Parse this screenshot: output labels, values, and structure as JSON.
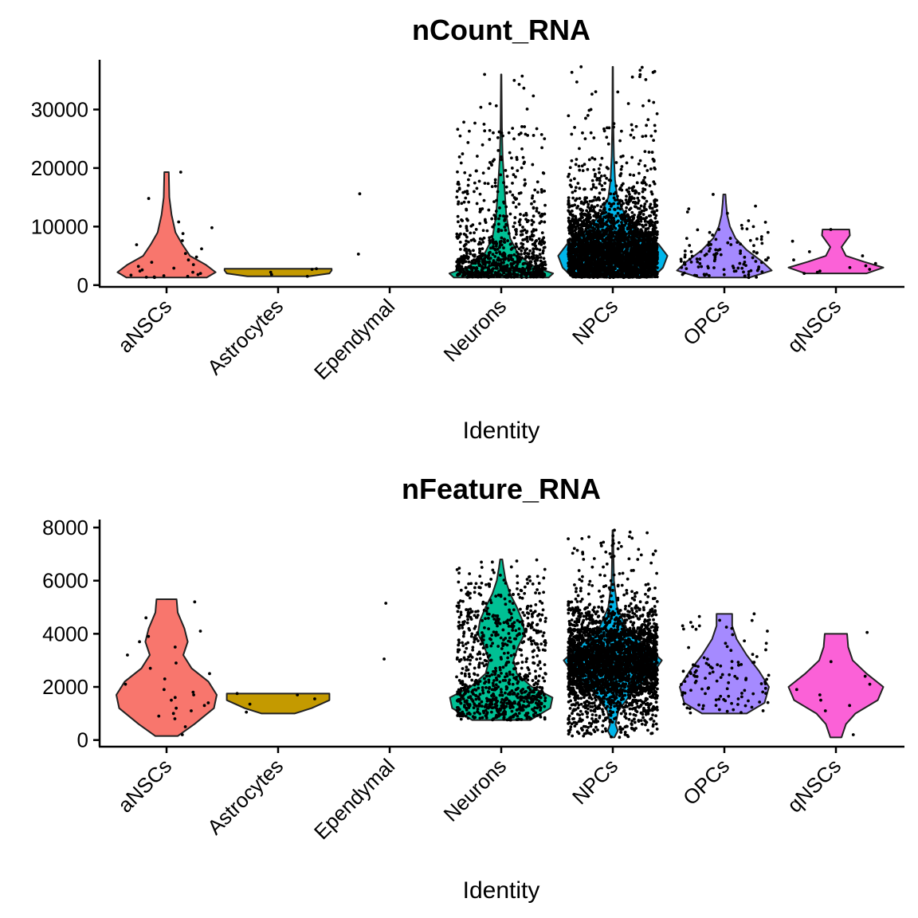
{
  "chart_data": [
    {
      "type": "violin",
      "title": "nCount_RNA",
      "xlabel": "Identity",
      "ylabel": "",
      "ylim": [
        -300,
        38500
      ],
      "yticks": [
        0,
        10000,
        20000,
        30000
      ],
      "ytick_labels": [
        "0",
        "10000",
        "20000",
        "30000"
      ],
      "categories": [
        "aNSCs",
        "Astrocytes",
        "Ependymal",
        "Neurons",
        "NPCs",
        "OPCs",
        "qNSCs"
      ],
      "colors": [
        "#F8766D",
        "#C49A00",
        "#53B400",
        "#00C094",
        "#00B6EB",
        "#A58AFF",
        "#FB61D7"
      ],
      "violins": [
        {
          "name": "aNSCs",
          "min": 1300,
          "max": 19300,
          "profile": [
            [
              1300,
              0.72
            ],
            [
              2200,
              0.88
            ],
            [
              3500,
              0.7
            ],
            [
              5000,
              0.42
            ],
            [
              7000,
              0.28
            ],
            [
              9000,
              0.16
            ],
            [
              12000,
              0.09
            ],
            [
              15000,
              0.05
            ],
            [
              19300,
              0.04
            ]
          ]
        },
        {
          "name": "Astrocytes",
          "min": 1500,
          "max": 2800,
          "profile": [
            [
              1500,
              0.55
            ],
            [
              2000,
              0.92
            ],
            [
              2500,
              0.96
            ],
            [
              2800,
              0.96
            ]
          ]
        },
        {
          "name": "Ependymal",
          "min": 5300,
          "max": 15600,
          "profile": []
        },
        {
          "name": "Neurons",
          "min": 1300,
          "max": 36000,
          "profile": [
            [
              1300,
              0.85
            ],
            [
              2000,
              0.93
            ],
            [
              3000,
              0.62
            ],
            [
              5000,
              0.32
            ],
            [
              8000,
              0.16
            ],
            [
              12000,
              0.09
            ],
            [
              15000,
              0.07
            ],
            [
              18000,
              0.05
            ],
            [
              22000,
              0.025
            ],
            [
              27000,
              0.012
            ],
            [
              36000,
              0.004
            ]
          ]
        },
        {
          "name": "NPCs",
          "min": 1300,
          "max": 37300,
          "profile": [
            [
              1300,
              0.72
            ],
            [
              3000,
              0.9
            ],
            [
              5000,
              0.98
            ],
            [
              7000,
              0.82
            ],
            [
              9000,
              0.52
            ],
            [
              12000,
              0.22
            ],
            [
              15000,
              0.08
            ],
            [
              18000,
              0.04
            ],
            [
              22000,
              0.02
            ],
            [
              28000,
              0.008
            ],
            [
              37300,
              0.004
            ]
          ]
        },
        {
          "name": "OPCs",
          "min": 1300,
          "max": 15500,
          "profile": [
            [
              1300,
              0.45
            ],
            [
              2500,
              0.85
            ],
            [
              4000,
              0.68
            ],
            [
              6000,
              0.4
            ],
            [
              8000,
              0.2
            ],
            [
              10000,
              0.1
            ],
            [
              12000,
              0.05
            ],
            [
              14000,
              0.03
            ],
            [
              15500,
              0.02
            ]
          ]
        },
        {
          "name": "qNSCs",
          "min": 2000,
          "max": 9500,
          "profile": [
            [
              2000,
              0.55
            ],
            [
              3000,
              0.85
            ],
            [
              4000,
              0.5
            ],
            [
              5000,
              0.18
            ],
            [
              6500,
              0.1
            ],
            [
              8500,
              0.25
            ],
            [
              9500,
              0.24
            ]
          ]
        }
      ],
      "points": [
        {
          "name": "aNSCs",
          "values": [
            19300,
            14800,
            10800,
            9800,
            8800,
            7600,
            6900,
            6200,
            5400,
            4800,
            4300,
            3900,
            3500,
            3200,
            2900,
            2600,
            2400,
            2200,
            2000,
            1800,
            1700,
            1600,
            1500,
            1400,
            1350,
            1300
          ],
          "n_extra": 0
        },
        {
          "name": "Astrocytes",
          "values": [
            2800,
            2700,
            2200,
            1800,
            1500
          ],
          "n_extra": 0
        },
        {
          "name": "Ependymal",
          "values": [
            15600,
            5300
          ],
          "n_extra": 0
        },
        {
          "name": "Neurons",
          "values": [
            36000,
            31000,
            26000,
            25000,
            23000,
            21000,
            19500,
            18000
          ],
          "n_extra": 900
        },
        {
          "name": "NPCs",
          "values": [
            37300,
            36500,
            34700,
            33000,
            31500,
            30000,
            28500,
            27000,
            26000,
            25000
          ],
          "n_extra": 3200
        },
        {
          "name": "OPCs",
          "values": [
            15500,
            13500,
            12500,
            11000,
            10000,
            9000
          ],
          "n_extra": 110
        },
        {
          "name": "qNSCs",
          "values": [
            9500,
            7500,
            5700,
            5000,
            4300,
            3700,
            3300,
            3000,
            2700,
            2400,
            2200,
            2000
          ],
          "n_extra": 0
        }
      ]
    },
    {
      "type": "violin",
      "title": "nFeature_RNA",
      "xlabel": "Identity",
      "ylabel": "",
      "ylim": [
        -250,
        8300
      ],
      "yticks": [
        0,
        2000,
        4000,
        6000,
        8000
      ],
      "ytick_labels": [
        "0",
        "2000",
        "4000",
        "6000",
        "8000"
      ],
      "categories": [
        "aNSCs",
        "Astrocytes",
        "Ependymal",
        "Neurons",
        "NPCs",
        "OPCs",
        "qNSCs"
      ],
      "colors": [
        "#F8766D",
        "#C49A00",
        "#53B400",
        "#00C094",
        "#00B6EB",
        "#A58AFF",
        "#FB61D7"
      ],
      "violins": [
        {
          "name": "aNSCs",
          "min": 150,
          "max": 5300,
          "profile": [
            [
              150,
              0.2
            ],
            [
              600,
              0.5
            ],
            [
              1200,
              0.85
            ],
            [
              1700,
              0.9
            ],
            [
              2200,
              0.75
            ],
            [
              2700,
              0.45
            ],
            [
              3200,
              0.3
            ],
            [
              3700,
              0.38
            ],
            [
              4200,
              0.32
            ],
            [
              4800,
              0.2
            ],
            [
              5300,
              0.18
            ]
          ]
        },
        {
          "name": "Astrocytes",
          "min": 1000,
          "max": 1750,
          "profile": [
            [
              1000,
              0.3
            ],
            [
              1200,
              0.6
            ],
            [
              1500,
              0.92
            ],
            [
              1750,
              0.92
            ]
          ]
        },
        {
          "name": "Ependymal",
          "min": 3050,
          "max": 5150,
          "profile": []
        },
        {
          "name": "Neurons",
          "min": 750,
          "max": 6800,
          "profile": [
            [
              750,
              0.52
            ],
            [
              1200,
              0.88
            ],
            [
              1600,
              0.92
            ],
            [
              2000,
              0.55
            ],
            [
              2500,
              0.28
            ],
            [
              3000,
              0.22
            ],
            [
              3500,
              0.3
            ],
            [
              4000,
              0.42
            ],
            [
              4500,
              0.38
            ],
            [
              5000,
              0.28
            ],
            [
              5500,
              0.16
            ],
            [
              6000,
              0.08
            ],
            [
              6500,
              0.04
            ],
            [
              6800,
              0.02
            ]
          ]
        },
        {
          "name": "NPCs",
          "min": 100,
          "max": 7900,
          "profile": [
            [
              100,
              0.03
            ],
            [
              350,
              0.09
            ],
            [
              600,
              0.05
            ],
            [
              1100,
              0.1
            ],
            [
              1800,
              0.35
            ],
            [
              2500,
              0.72
            ],
            [
              3000,
              0.88
            ],
            [
              3500,
              0.62
            ],
            [
              4200,
              0.25
            ],
            [
              5000,
              0.08
            ],
            [
              6000,
              0.02
            ],
            [
              7900,
              0.005
            ]
          ]
        },
        {
          "name": "OPCs",
          "min": 1000,
          "max": 4750,
          "profile": [
            [
              1000,
              0.4
            ],
            [
              1400,
              0.72
            ],
            [
              2000,
              0.8
            ],
            [
              2600,
              0.62
            ],
            [
              3200,
              0.4
            ],
            [
              3800,
              0.22
            ],
            [
              4300,
              0.14
            ],
            [
              4750,
              0.14
            ]
          ]
        },
        {
          "name": "qNSCs",
          "min": 100,
          "max": 4000,
          "profile": [
            [
              100,
              0.1
            ],
            [
              600,
              0.18
            ],
            [
              1000,
              0.35
            ],
            [
              1500,
              0.75
            ],
            [
              2000,
              0.85
            ],
            [
              2500,
              0.55
            ],
            [
              3000,
              0.3
            ],
            [
              3500,
              0.22
            ],
            [
              4000,
              0.2
            ]
          ]
        }
      ],
      "points": [
        {
          "name": "aNSCs",
          "values": [
            5200,
            4600,
            4100,
            3900,
            3700,
            3500,
            3200,
            2900,
            2700,
            2500,
            2300,
            2100,
            1900,
            1800,
            1700,
            1600,
            1500,
            1400,
            1300,
            1200,
            1100,
            1000,
            900,
            800,
            500,
            200
          ],
          "n_extra": 0
        },
        {
          "name": "Astrocytes",
          "values": [
            1750,
            1700,
            1550,
            1350,
            1050
          ],
          "n_extra": 0
        },
        {
          "name": "Ependymal",
          "values": [
            5150,
            3050
          ],
          "n_extra": 0
        },
        {
          "name": "Neurons",
          "values": [
            6700,
            6500,
            6300,
            6100,
            5900
          ],
          "n_extra": 900
        },
        {
          "name": "NPCs",
          "values": [
            7900,
            7800,
            7600,
            7400,
            7200,
            7000,
            6800
          ],
          "n_extra": 3200
        },
        {
          "name": "OPCs",
          "values": [
            4750,
            4650,
            4500,
            4300,
            4100
          ],
          "n_extra": 110
        },
        {
          "name": "qNSCs",
          "values": [
            4050,
            2950,
            2400,
            2100,
            1900,
            1700,
            1500,
            1300,
            1100,
            200
          ],
          "n_extra": 0
        }
      ]
    }
  ]
}
